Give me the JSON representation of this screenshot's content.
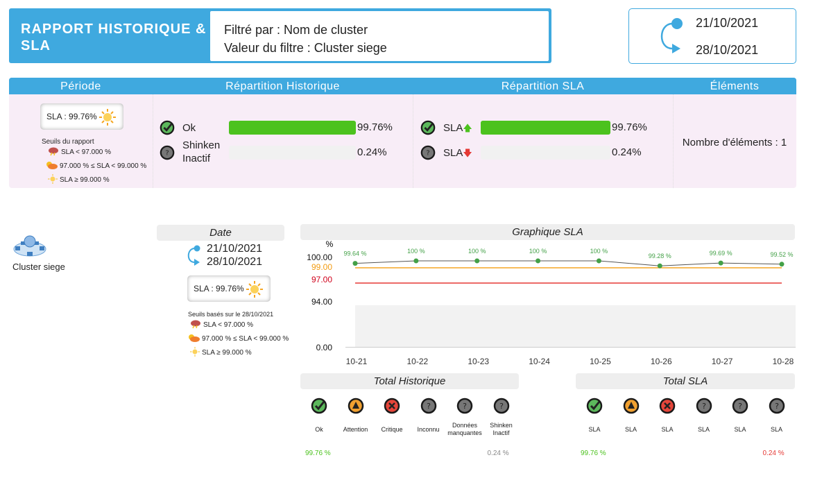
{
  "header": {
    "title": "RAPPORT HISTORIQUE & SLA",
    "filter_by": "Filtré par : Nom de cluster",
    "filter_value": "Valeur du filtre : Cluster siege"
  },
  "period": {
    "start": "21/10/2021",
    "end": "28/10/2021"
  },
  "table": {
    "headers": [
      "Période",
      "Répartition Historique",
      "Répartition SLA",
      "Éléments"
    ],
    "sla_badge": "SLA : 99.76%",
    "thresholds_title": "Seuils du rapport",
    "thresholds": [
      "SLA < 97.000 %",
      "97.000 % ≤ SLA < 99.000 %",
      "SLA ≥ 99.000 %"
    ],
    "historique": [
      {
        "label": "Ok",
        "value": "99.76%",
        "pct": 99.76,
        "icon": "ok-check-icon"
      },
      {
        "label": "Shinken Inactif",
        "value": "0.24%",
        "pct": 0.24,
        "icon": "unknown-question-icon"
      }
    ],
    "sla": [
      {
        "label": "SLA",
        "value": "99.76%",
        "pct": 99.76,
        "icon": "ok-check-icon",
        "arrow": "up"
      },
      {
        "label": "SLA",
        "value": "0.24%",
        "pct": 0.24,
        "icon": "unknown-question-icon",
        "arrow": "down"
      }
    ],
    "elements": "Nombre d'éléments : 1"
  },
  "item": {
    "name": "Cluster siege",
    "icon": "cluster-icon"
  },
  "date_panel": {
    "title": "Date",
    "start": "21/10/2021",
    "end": "28/10/2021",
    "sla_badge": "SLA : 99.76%",
    "thresholds_title": "Seuils basés sur le 28/10/2021",
    "thresholds": [
      "SLA < 97.000 %",
      "97.000 % ≤ SLA < 99.000 %",
      "SLA ≥ 99.000 %"
    ]
  },
  "chart_data": {
    "type": "line",
    "title": "Graphique SLA",
    "ylabel": "%",
    "categories": [
      "10-21",
      "10-22",
      "10-23",
      "10-24",
      "10-25",
      "10-26",
      "10-27",
      "10-28"
    ],
    "values": [
      99.64,
      100,
      100,
      100,
      100,
      99.28,
      99.69,
      99.52
    ],
    "data_labels": [
      "99.64 %",
      "100 %",
      "100 %",
      "100 %",
      "100 %",
      "99.28 %",
      "99.69 %",
      "99.52 %"
    ],
    "y_ticks": [
      "100.00",
      "99.00",
      "97.00",
      "94.00",
      "0.00"
    ],
    "thresholds": [
      {
        "value": 99,
        "color": "#f5a623"
      },
      {
        "value": 97,
        "color": "#e53935"
      }
    ],
    "ylim": [
      0,
      100
    ],
    "scale": "piecewise",
    "line_color": "#555555",
    "point_color": "#43a047"
  },
  "totals_hist": {
    "title": "Total Historique",
    "items": [
      {
        "label": "Ok",
        "icon": "ok",
        "value": "99.76 %"
      },
      {
        "label": "Attention",
        "icon": "warning",
        "value": ""
      },
      {
        "label": "Critique",
        "icon": "critical",
        "value": ""
      },
      {
        "label": "Inconnu",
        "icon": "unknown",
        "value": ""
      },
      {
        "label": "Données manquantes",
        "icon": "unknown",
        "value": ""
      },
      {
        "label": "Shinken Inactif",
        "icon": "unknown",
        "value": "0.24 %"
      }
    ]
  },
  "totals_sla": {
    "title": "Total SLA",
    "items": [
      {
        "label": "SLA",
        "icon": "ok",
        "value": "99.76 %"
      },
      {
        "label": "SLA",
        "icon": "warning",
        "value": ""
      },
      {
        "label": "SLA",
        "icon": "critical",
        "value": ""
      },
      {
        "label": "SLA",
        "icon": "unknown",
        "value": ""
      },
      {
        "label": "SLA",
        "icon": "unknown",
        "value": ""
      },
      {
        "label": "SLA",
        "icon": "unknown",
        "value": "0.24 %"
      }
    ]
  },
  "colors": {
    "accent": "#3fa9df",
    "ok": "#4cc21e",
    "pink_bg": "#f8edf7"
  }
}
